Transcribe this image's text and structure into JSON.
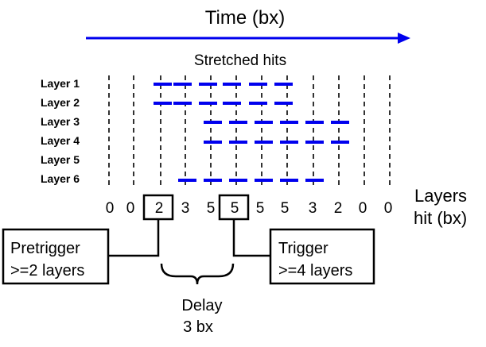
{
  "title": "Time (bx)",
  "subtitle": "Stretched hits",
  "layers": [
    "Layer 1",
    "Layer 2",
    "Layer 3",
    "Layer 4",
    "Layer 5",
    "Layer 6"
  ],
  "hits_per_bx": [
    "0",
    "0",
    "2",
    "3",
    "5",
    "5",
    "5",
    "5",
    "3",
    "2",
    "0",
    "0"
  ],
  "layers_hit_label_line1": "Layers",
  "layers_hit_label_line2": "hit (bx)",
  "pretrigger_line1": "Pretrigger",
  "pretrigger_line2": ">=2 layers",
  "trigger_line1": "Trigger",
  "trigger_line2": ">=4 layers",
  "delay_line1": "Delay",
  "delay_line2": "3 bx",
  "colors": {
    "arrow": "#0000ee",
    "hits": "#0000ee",
    "text": "#000000"
  }
}
